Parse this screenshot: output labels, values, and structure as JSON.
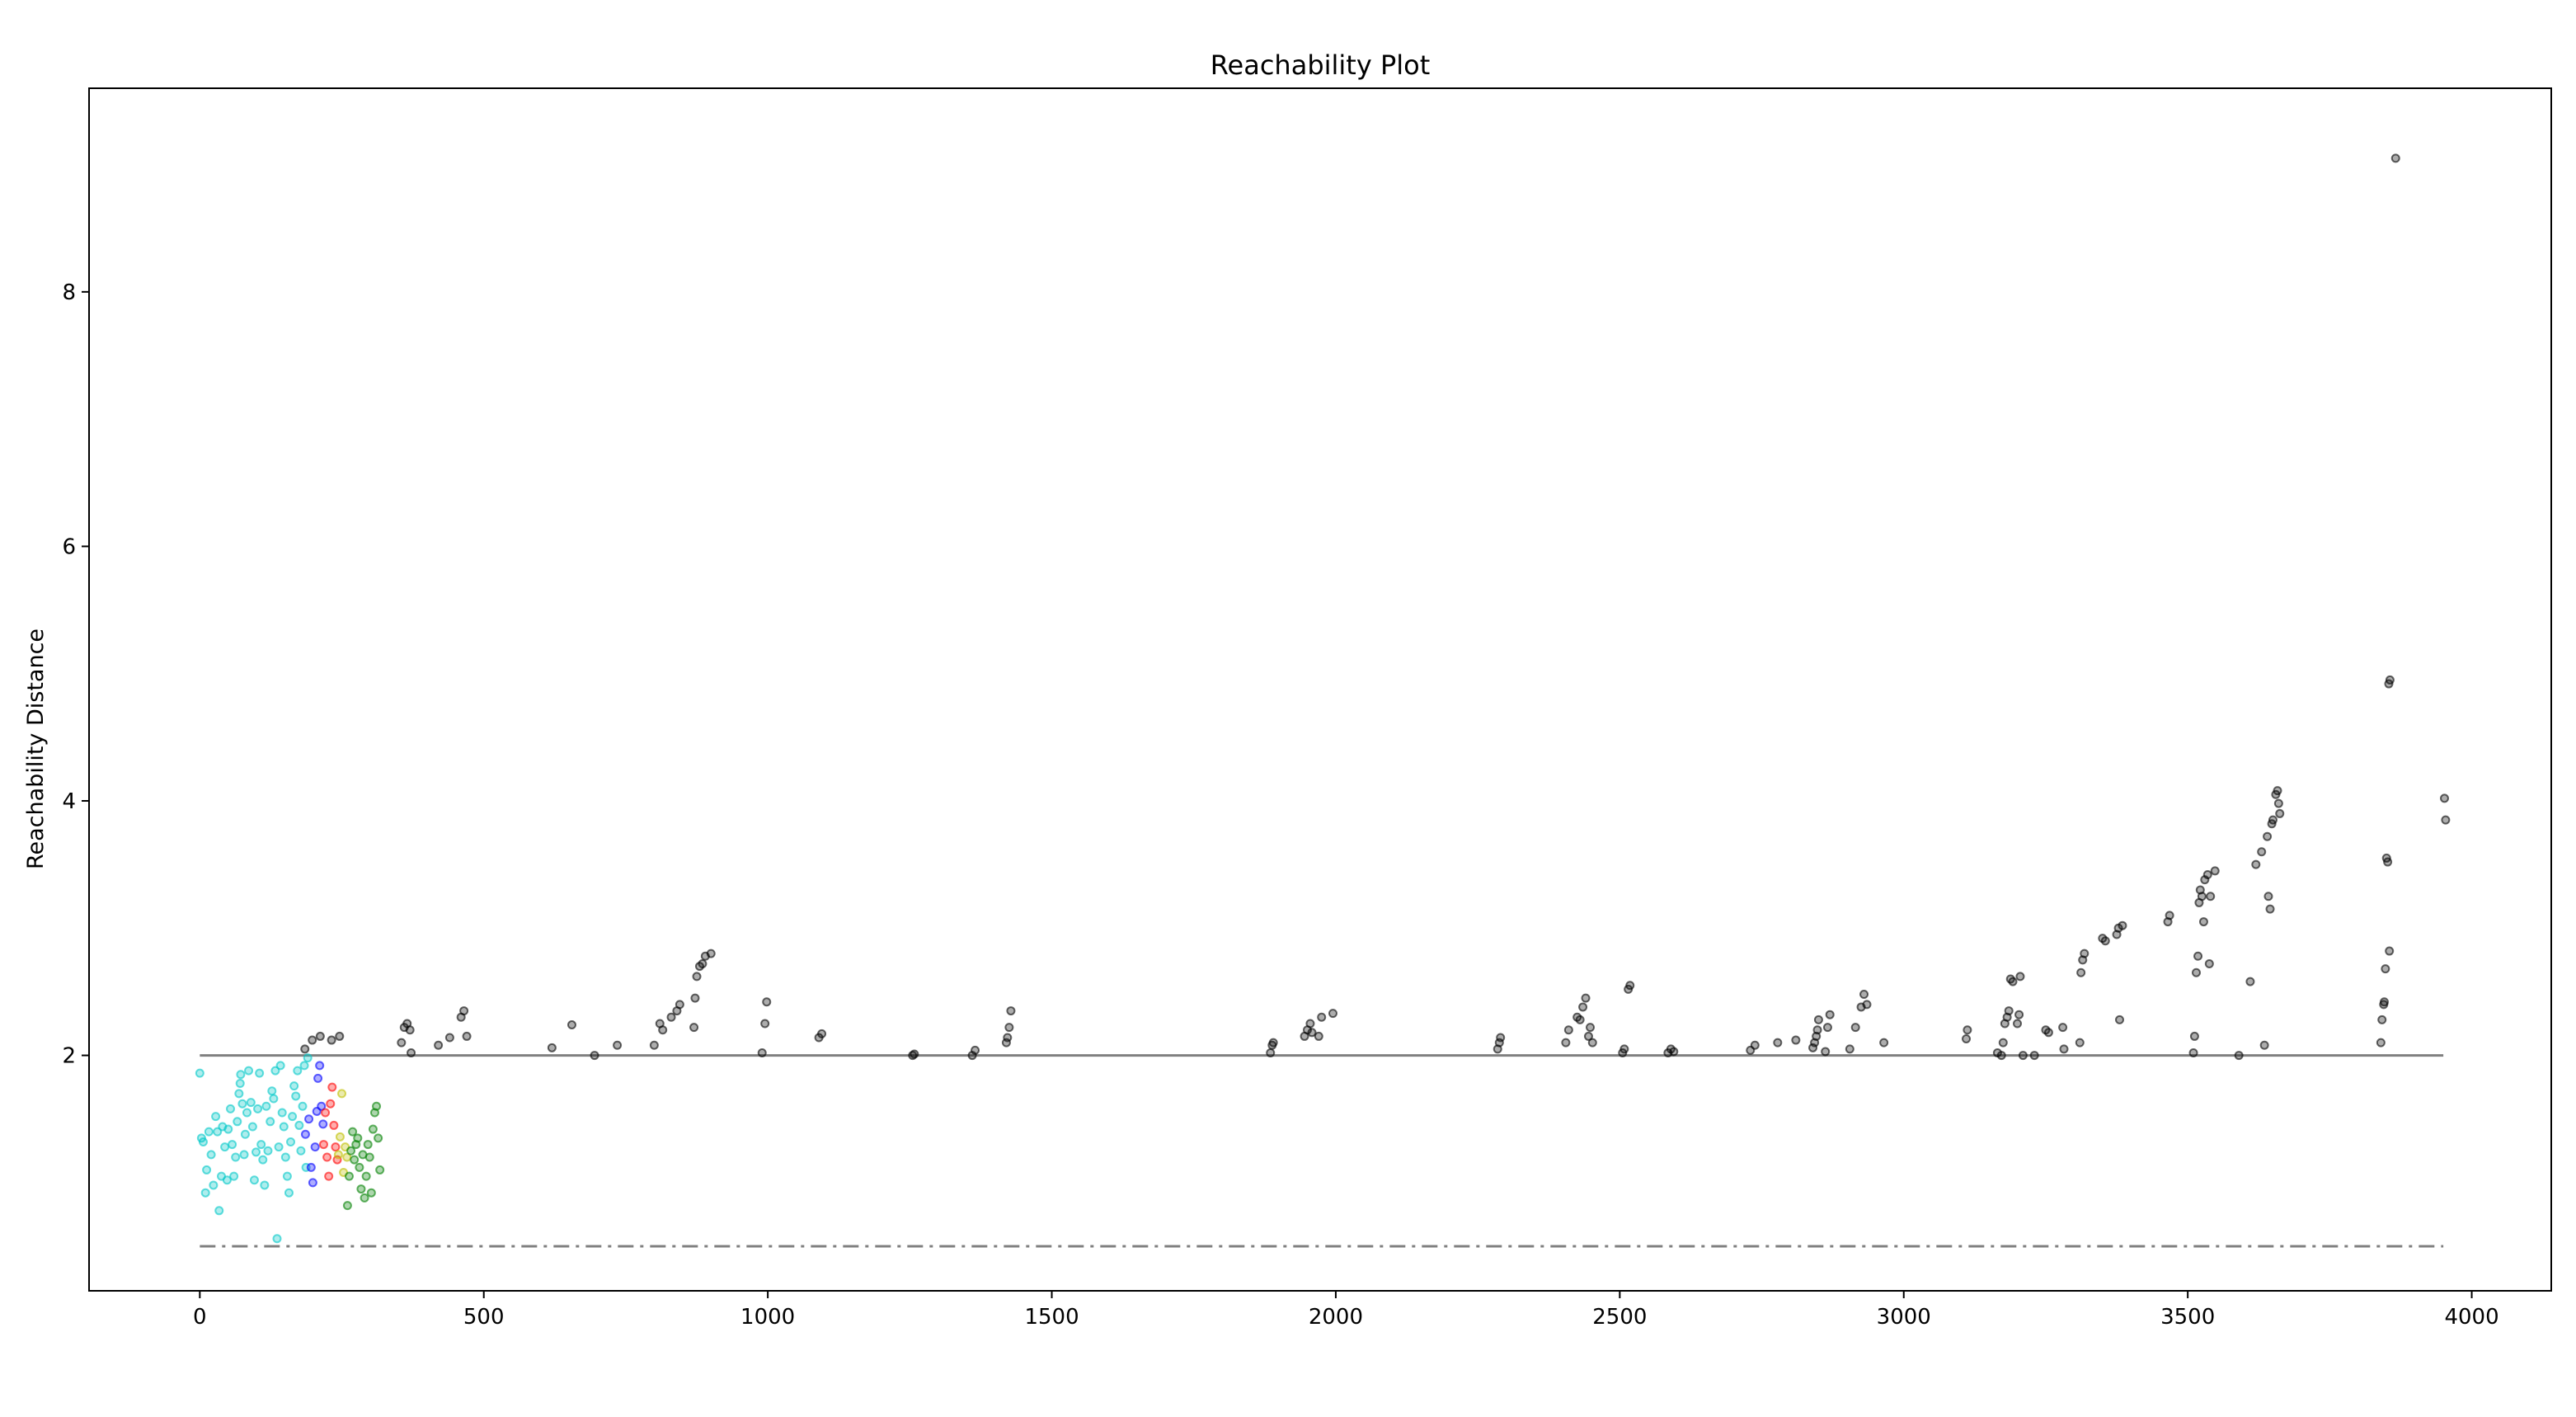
{
  "chart_data": {
    "type": "scatter",
    "title": "Reachability Plot",
    "xlabel": "",
    "ylabel": "Reachability Distance",
    "xlim": [
      -195,
      4140
    ],
    "ylim": [
      0.15,
      9.6
    ],
    "xticks": [
      0,
      500,
      1000,
      1500,
      2000,
      2500,
      3000,
      3500,
      4000
    ],
    "yticks": [
      2,
      4,
      6,
      8
    ],
    "grid": false,
    "legend": "none",
    "reference_lines": [
      {
        "y": 2.0,
        "x_range": [
          0,
          3950
        ],
        "style": "solid",
        "color": "#808080"
      },
      {
        "y": 0.5,
        "x_range": [
          0,
          3950
        ],
        "style": "dashdot",
        "color": "#808080"
      }
    ],
    "series": [
      {
        "color": "#00c8c8",
        "points": [
          [
            0,
            1.86
          ],
          [
            3,
            1.35
          ],
          [
            6,
            1.32
          ],
          [
            10,
            0.92
          ],
          [
            12,
            1.1
          ],
          [
            16,
            1.4
          ],
          [
            20,
            1.22
          ],
          [
            24,
            0.98
          ],
          [
            28,
            1.52
          ],
          [
            31,
            1.4
          ],
          [
            34,
            0.78
          ],
          [
            38,
            1.05
          ],
          [
            40,
            1.44
          ],
          [
            44,
            1.28
          ],
          [
            48,
            1.02
          ],
          [
            50,
            1.42
          ],
          [
            54,
            1.58
          ],
          [
            57,
            1.3
          ],
          [
            60,
            1.05
          ],
          [
            63,
            1.2
          ],
          [
            66,
            1.48
          ],
          [
            69,
            1.7
          ],
          [
            71,
            1.78
          ],
          [
            72,
            1.85
          ],
          [
            75,
            1.62
          ],
          [
            78,
            1.22
          ],
          [
            80,
            1.38
          ],
          [
            83,
            1.55
          ],
          [
            86,
            1.88
          ],
          [
            90,
            1.63
          ],
          [
            93,
            1.44
          ],
          [
            96,
            1.02
          ],
          [
            99,
            1.24
          ],
          [
            102,
            1.58
          ],
          [
            105,
            1.86
          ],
          [
            108,
            1.3
          ],
          [
            111,
            1.18
          ],
          [
            114,
            0.98
          ],
          [
            117,
            1.6
          ],
          [
            120,
            1.25
          ],
          [
            124,
            1.48
          ],
          [
            127,
            1.72
          ],
          [
            130,
            1.66
          ],
          [
            133,
            1.88
          ],
          [
            136,
            0.56
          ],
          [
            139,
            1.28
          ],
          [
            142,
            1.92
          ],
          [
            145,
            1.55
          ],
          [
            148,
            1.44
          ],
          [
            151,
            1.2
          ],
          [
            154,
            1.05
          ],
          [
            157,
            0.92
          ],
          [
            160,
            1.32
          ],
          [
            163,
            1.52
          ],
          [
            166,
            1.76
          ],
          [
            169,
            1.68
          ],
          [
            172,
            1.88
          ],
          [
            175,
            1.45
          ],
          [
            178,
            1.25
          ],
          [
            181,
            1.6
          ],
          [
            184,
            1.92
          ],
          [
            187,
            1.12
          ],
          [
            190,
            1.98
          ]
        ]
      },
      {
        "color": "#0000ff",
        "points": [
          [
            186,
            1.38
          ],
          [
            192,
            1.5
          ],
          [
            196,
            1.12
          ],
          [
            199,
            1.0
          ],
          [
            203,
            1.28
          ],
          [
            206,
            1.56
          ],
          [
            208,
            1.82
          ],
          [
            211,
            1.92
          ],
          [
            214,
            1.6
          ],
          [
            217,
            1.46
          ]
        ]
      },
      {
        "color": "#ff0000",
        "points": [
          [
            218,
            1.3
          ],
          [
            221,
            1.55
          ],
          [
            224,
            1.2
          ],
          [
            227,
            1.05
          ],
          [
            230,
            1.62
          ],
          [
            233,
            1.75
          ],
          [
            236,
            1.45
          ],
          [
            239,
            1.28
          ],
          [
            242,
            1.18
          ]
        ]
      },
      {
        "color": "#bfbf00",
        "points": [
          [
            244,
            1.22
          ],
          [
            247,
            1.36
          ],
          [
            250,
            1.7
          ],
          [
            253,
            1.08
          ],
          [
            256,
            1.28
          ],
          [
            259,
            1.2
          ]
        ]
      },
      {
        "color": "#008000",
        "points": [
          [
            260,
            0.82
          ],
          [
            263,
            1.05
          ],
          [
            266,
            1.25
          ],
          [
            269,
            1.4
          ],
          [
            272,
            1.18
          ],
          [
            275,
            1.3
          ],
          [
            278,
            1.35
          ],
          [
            281,
            1.12
          ],
          [
            284,
            0.95
          ],
          [
            287,
            1.22
          ],
          [
            290,
            0.88
          ],
          [
            293,
            1.05
          ],
          [
            296,
            1.3
          ],
          [
            299,
            1.2
          ],
          [
            302,
            0.92
          ],
          [
            305,
            1.42
          ],
          [
            308,
            1.55
          ],
          [
            311,
            1.6
          ],
          [
            314,
            1.35
          ],
          [
            317,
            1.1
          ]
        ]
      },
      {
        "color": "#000000",
        "points": [
          [
            185,
            2.05
          ],
          [
            198,
            2.12
          ],
          [
            212,
            2.15
          ],
          [
            232,
            2.12
          ],
          [
            246,
            2.15
          ],
          [
            355,
            2.1
          ],
          [
            360,
            2.22
          ],
          [
            365,
            2.25
          ],
          [
            370,
            2.2
          ],
          [
            372,
            2.02
          ],
          [
            420,
            2.08
          ],
          [
            440,
            2.14
          ],
          [
            460,
            2.3
          ],
          [
            465,
            2.35
          ],
          [
            470,
            2.15
          ],
          [
            620,
            2.06
          ],
          [
            655,
            2.24
          ],
          [
            695,
            2.0
          ],
          [
            735,
            2.08
          ],
          [
            800,
            2.08
          ],
          [
            810,
            2.25
          ],
          [
            815,
            2.2
          ],
          [
            830,
            2.3
          ],
          [
            840,
            2.35
          ],
          [
            845,
            2.4
          ],
          [
            870,
            2.22
          ],
          [
            872,
            2.45
          ],
          [
            875,
            2.62
          ],
          [
            880,
            2.7
          ],
          [
            885,
            2.72
          ],
          [
            890,
            2.78
          ],
          [
            900,
            2.8
          ],
          [
            990,
            2.02
          ],
          [
            995,
            2.25
          ],
          [
            998,
            2.42
          ],
          [
            1090,
            2.14
          ],
          [
            1095,
            2.17
          ],
          [
            1255,
            2.0
          ],
          [
            1258,
            2.01
          ],
          [
            1360,
            2.0
          ],
          [
            1365,
            2.04
          ],
          [
            1420,
            2.1
          ],
          [
            1422,
            2.14
          ],
          [
            1425,
            2.22
          ],
          [
            1428,
            2.35
          ],
          [
            1885,
            2.02
          ],
          [
            1888,
            2.08
          ],
          [
            1890,
            2.1
          ],
          [
            1945,
            2.15
          ],
          [
            1950,
            2.2
          ],
          [
            1955,
            2.25
          ],
          [
            1958,
            2.18
          ],
          [
            1970,
            2.15
          ],
          [
            1975,
            2.3
          ],
          [
            1995,
            2.33
          ],
          [
            2285,
            2.05
          ],
          [
            2288,
            2.1
          ],
          [
            2290,
            2.14
          ],
          [
            2405,
            2.1
          ],
          [
            2410,
            2.2
          ],
          [
            2425,
            2.3
          ],
          [
            2430,
            2.28
          ],
          [
            2435,
            2.38
          ],
          [
            2440,
            2.45
          ],
          [
            2445,
            2.15
          ],
          [
            2448,
            2.22
          ],
          [
            2452,
            2.1
          ],
          [
            2505,
            2.02
          ],
          [
            2508,
            2.05
          ],
          [
            2515,
            2.52
          ],
          [
            2518,
            2.55
          ],
          [
            2585,
            2.02
          ],
          [
            2590,
            2.05
          ],
          [
            2595,
            2.03
          ],
          [
            2730,
            2.04
          ],
          [
            2738,
            2.08
          ],
          [
            2778,
            2.1
          ],
          [
            2810,
            2.12
          ],
          [
            2840,
            2.06
          ],
          [
            2843,
            2.1
          ],
          [
            2846,
            2.15
          ],
          [
            2848,
            2.2
          ],
          [
            2850,
            2.28
          ],
          [
            2862,
            2.03
          ],
          [
            2866,
            2.22
          ],
          [
            2870,
            2.32
          ],
          [
            2905,
            2.05
          ],
          [
            2915,
            2.22
          ],
          [
            2925,
            2.38
          ],
          [
            2930,
            2.48
          ],
          [
            2935,
            2.4
          ],
          [
            2965,
            2.1
          ],
          [
            3110,
            2.13
          ],
          [
            3112,
            2.2
          ],
          [
            3165,
            2.02
          ],
          [
            3172,
            2.0
          ],
          [
            3175,
            2.1
          ],
          [
            3178,
            2.25
          ],
          [
            3182,
            2.3
          ],
          [
            3185,
            2.35
          ],
          [
            3188,
            2.6
          ],
          [
            3192,
            2.58
          ],
          [
            3200,
            2.25
          ],
          [
            3203,
            2.32
          ],
          [
            3205,
            2.62
          ],
          [
            3210,
            2.0
          ],
          [
            3230,
            2.0
          ],
          [
            3250,
            2.2
          ],
          [
            3255,
            2.18
          ],
          [
            3280,
            2.22
          ],
          [
            3282,
            2.05
          ],
          [
            3310,
            2.1
          ],
          [
            3312,
            2.65
          ],
          [
            3315,
            2.75
          ],
          [
            3318,
            2.8
          ],
          [
            3350,
            2.92
          ],
          [
            3355,
            2.9
          ],
          [
            3375,
            2.95
          ],
          [
            3378,
            3.0
          ],
          [
            3380,
            2.28
          ],
          [
            3385,
            3.02
          ],
          [
            3465,
            3.05
          ],
          [
            3468,
            3.1
          ],
          [
            3510,
            2.02
          ],
          [
            3512,
            2.15
          ],
          [
            3515,
            2.65
          ],
          [
            3518,
            2.78
          ],
          [
            3520,
            3.2
          ],
          [
            3522,
            3.3
          ],
          [
            3525,
            3.25
          ],
          [
            3528,
            3.05
          ],
          [
            3530,
            3.38
          ],
          [
            3535,
            3.42
          ],
          [
            3538,
            2.72
          ],
          [
            3540,
            3.25
          ],
          [
            3548,
            3.45
          ],
          [
            3590,
            2.0
          ],
          [
            3610,
            2.58
          ],
          [
            3620,
            3.5
          ],
          [
            3630,
            3.6
          ],
          [
            3635,
            2.08
          ],
          [
            3640,
            3.72
          ],
          [
            3642,
            3.25
          ],
          [
            3645,
            3.15
          ],
          [
            3648,
            3.82
          ],
          [
            3650,
            3.85
          ],
          [
            3655,
            4.05
          ],
          [
            3658,
            4.08
          ],
          [
            3660,
            3.98
          ],
          [
            3662,
            3.9
          ],
          [
            3840,
            2.1
          ],
          [
            3842,
            2.28
          ],
          [
            3845,
            2.4
          ],
          [
            3846,
            2.42
          ],
          [
            3848,
            2.68
          ],
          [
            3850,
            3.55
          ],
          [
            3852,
            3.52
          ],
          [
            3854,
            4.92
          ],
          [
            3855,
            2.82
          ],
          [
            3856,
            4.95
          ],
          [
            3866,
            9.05
          ],
          [
            3952,
            4.02
          ],
          [
            3954,
            3.85
          ]
        ]
      }
    ]
  }
}
